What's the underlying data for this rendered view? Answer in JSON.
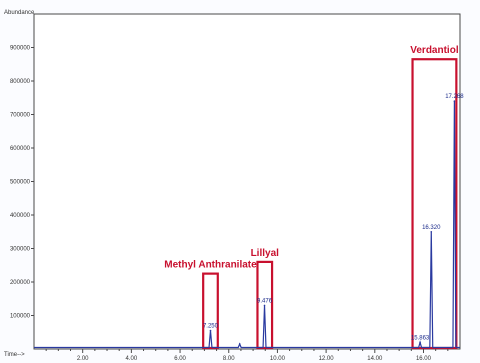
{
  "chart_data": {
    "type": "line",
    "ylabel": "Abundance",
    "xlabel": "Time-->",
    "xlim": [
      0,
      17.5
    ],
    "ylim": [
      0,
      1000000
    ],
    "x_ticks": [
      {
        "v": 2.0,
        "t": "2.00"
      },
      {
        "v": 4.0,
        "t": "4.00"
      },
      {
        "v": 6.0,
        "t": "6.00"
      },
      {
        "v": 8.0,
        "t": "8.00"
      },
      {
        "v": 10.0,
        "t": "10.00"
      },
      {
        "v": 12.0,
        "t": "12.00"
      },
      {
        "v": 14.0,
        "t": "14.00"
      },
      {
        "v": 16.0,
        "t": "16.00"
      }
    ],
    "y_ticks": [
      {
        "v": 100000,
        "t": "100000"
      },
      {
        "v": 200000,
        "t": "200000"
      },
      {
        "v": 300000,
        "t": "300000"
      },
      {
        "v": 400000,
        "t": "400000"
      },
      {
        "v": 500000,
        "t": "500000"
      },
      {
        "v": 600000,
        "t": "600000"
      },
      {
        "v": 700000,
        "t": "700000"
      },
      {
        "v": 800000,
        "t": "800000"
      },
      {
        "v": 900000,
        "t": "900000"
      }
    ],
    "series": [
      {
        "color": "#2a3aa0",
        "peaks": [
          {
            "x": 7.25,
            "y": 55000,
            "label": "7.250"
          },
          {
            "x": 8.45,
            "y": 15000,
            "label": ""
          },
          {
            "x": 9.47,
            "y": 130000,
            "label": "9.476"
          },
          {
            "x": 15.86,
            "y": 20000,
            "label": "15.863"
          },
          {
            "x": 16.32,
            "y": 350000,
            "label": "16.320"
          },
          {
            "x": 17.27,
            "y": 740000,
            "label": "17.268"
          }
        ]
      }
    ],
    "annotations": [
      {
        "label": "Methyl Anthranilate",
        "x0": 6.95,
        "x1": 7.55,
        "y0": 0,
        "y1": 225000
      },
      {
        "label": "Lillyal",
        "x0": 9.18,
        "x1": 9.78,
        "y0": 0,
        "y1": 260000
      },
      {
        "label": "Verdantiol",
        "x0": 15.55,
        "x1": 17.35,
        "y0": 0,
        "y1": 865000
      }
    ],
    "annotation_color": "#c8102e",
    "grid": false
  }
}
